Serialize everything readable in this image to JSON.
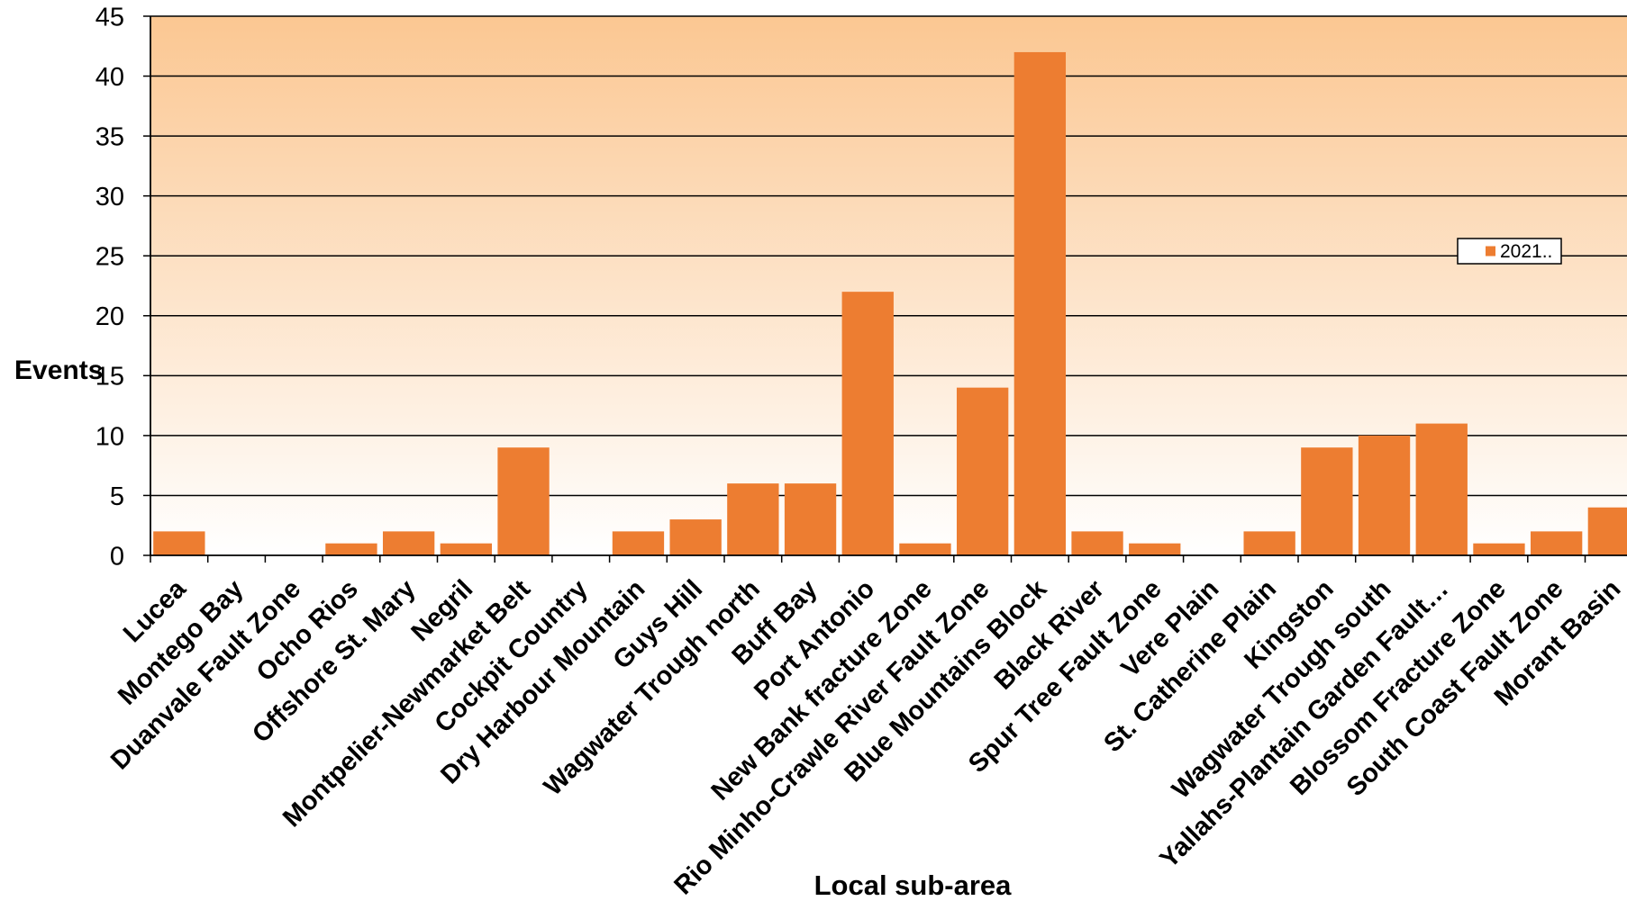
{
  "chart_data": {
    "type": "bar",
    "xlabel": "Local sub-area",
    "ylabel": "Events",
    "categories": [
      "Lucea",
      "Montego Bay",
      "Duanvale Fault Zone",
      "Ocho Rios",
      "Offshore St. Mary",
      "Negril",
      "Montpelier-Newmarket Belt",
      "Cockpit Country",
      "Dry Harbour Mountain",
      "Guys Hill",
      "Wagwater Trough north",
      "Buff Bay",
      "Port Antonio",
      "New Bank fracture Zone",
      "Rio Minho-Crawle River Fault Zone",
      "Blue Mountains Block",
      "Black River",
      "Spur Tree Fault Zone",
      "Vere Plain",
      "St. Catherine Plain",
      "Kingston",
      "Wagwater Trough south",
      "Yallahs-Plantain Garden Fault…",
      "Blossom Fracture Zone",
      "South Coast Fault Zone",
      "Morant Basin"
    ],
    "series": [
      {
        "name": "2021..",
        "values": [
          2,
          0,
          0,
          1,
          2,
          1,
          9,
          0,
          2,
          3,
          6,
          6,
          22,
          1,
          14,
          42,
          2,
          1,
          0,
          2,
          9,
          10,
          11,
          1,
          2,
          4
        ]
      }
    ],
    "ylim": [
      0,
      45
    ],
    "yticks": [
      0,
      5,
      10,
      15,
      20,
      25,
      30,
      35,
      40,
      45
    ],
    "grid": true,
    "legend": "right",
    "colors": {
      "bar": "#ED7D31",
      "plot_bg_top": "#FBC792",
      "plot_bg_bottom": "#FFFFFF",
      "axis": "#000000",
      "grid": "#000000"
    }
  }
}
